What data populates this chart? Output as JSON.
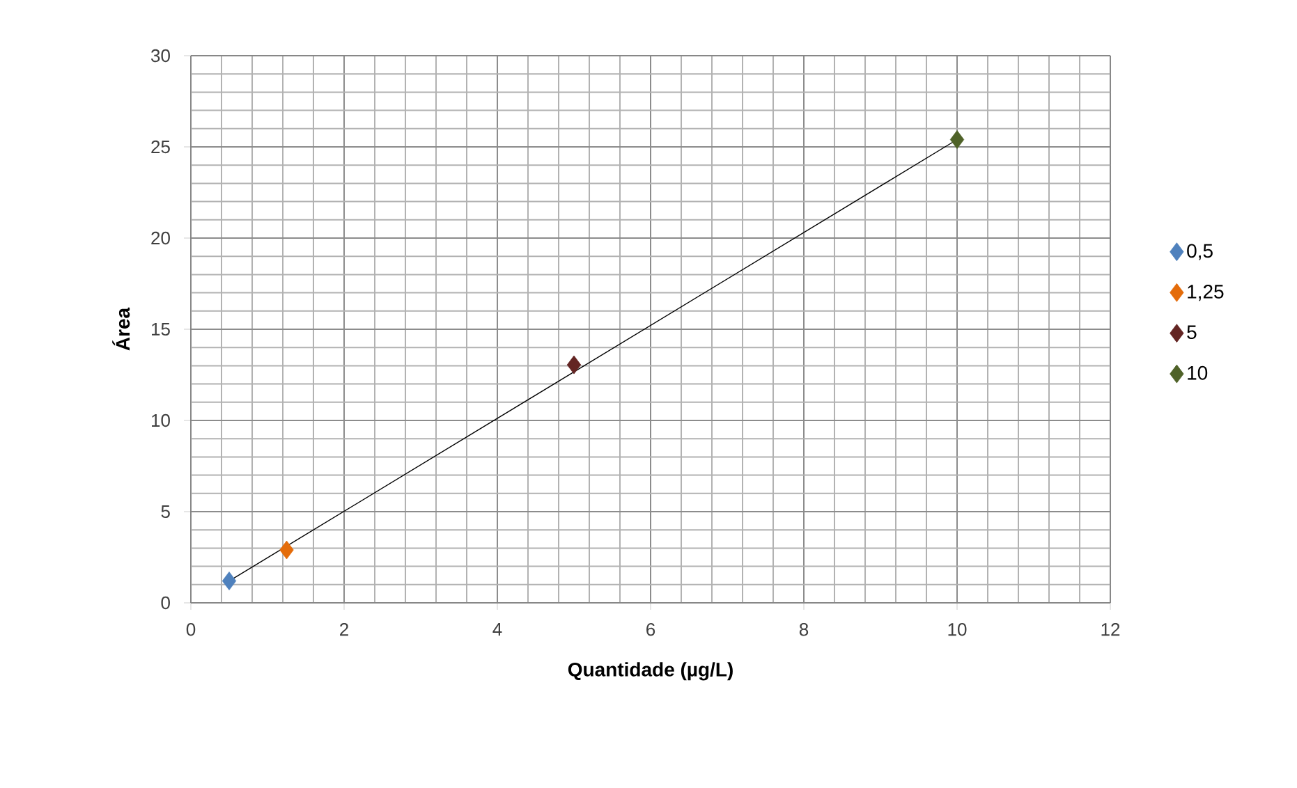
{
  "chart_data": {
    "type": "scatter",
    "xlabel": "Quantidade (µg/L)",
    "ylabel": "Área",
    "xlim": [
      0,
      12
    ],
    "xticks": [
      0,
      2,
      4,
      6,
      8,
      10,
      12
    ],
    "ylim": [
      0,
      30
    ],
    "yticks": [
      0,
      5,
      10,
      15,
      20,
      25,
      30
    ],
    "grid": true,
    "legend": "right",
    "marker": "diamond",
    "series": [
      {
        "name": "0,5",
        "color": "#4f81bd",
        "x": [
          0.5
        ],
        "values": [
          1.2
        ]
      },
      {
        "name": "1,25",
        "color": "#e46c0a",
        "x": [
          1.25
        ],
        "values": [
          2.9
        ]
      },
      {
        "name": "5",
        "color": "#632523",
        "x": [
          5
        ],
        "values": [
          13.05
        ]
      },
      {
        "name": "10",
        "color": "#4f6228",
        "x": [
          10
        ],
        "values": [
          25.4
        ]
      },
      {
        "type": "line",
        "marker": "none",
        "color": "#000000",
        "x": [
          0.5,
          10
        ],
        "values": [
          1.2,
          25.4
        ]
      }
    ]
  }
}
